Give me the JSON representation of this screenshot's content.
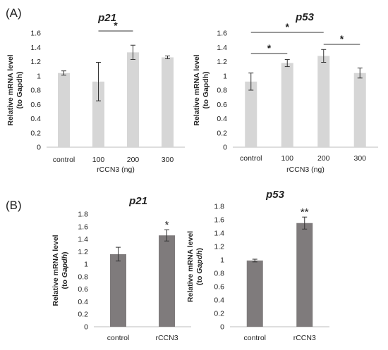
{
  "panels": [
    {
      "letter": "(A)"
    },
    {
      "letter": "(B)"
    }
  ],
  "chart_data": [
    {
      "type": "bar",
      "panel": "(A)",
      "title": "p21",
      "ylabel_line1": "Relative mRNA level",
      "ylabel_line2": "(to Gapdh)",
      "xlabel": "rCCN3 (ng)",
      "categories": [
        "control",
        "100",
        "200",
        "300"
      ],
      "values": [
        1.04,
        0.92,
        1.33,
        1.26
      ],
      "errors": [
        0.03,
        0.27,
        0.1,
        0.02
      ],
      "ylim": [
        0,
        1.6
      ],
      "yticks": [
        "0",
        "0.2",
        "0.4",
        "0.6",
        "0.8",
        "1",
        "1.2",
        "1.4",
        "1.6"
      ],
      "grid": false,
      "bar_color": "#d6d6d6",
      "significance": [
        {
          "from": 1,
          "to": 2,
          "label": "*"
        }
      ]
    },
    {
      "type": "bar",
      "panel": "(A)",
      "title": "p53",
      "ylabel_line1": "Relative mRNA level",
      "ylabel_line2": "(to Gapdh)",
      "xlabel": "rCCN3 (ng)",
      "categories": [
        "control",
        "100",
        "200",
        "300"
      ],
      "values": [
        0.92,
        1.18,
        1.28,
        1.04
      ],
      "errors": [
        0.12,
        0.05,
        0.09,
        0.07
      ],
      "ylim": [
        0,
        1.6
      ],
      "yticks": [
        "0",
        "0.2",
        "0.4",
        "0.6",
        "0.8",
        "1",
        "1.2",
        "1.4",
        "1.6"
      ],
      "grid": false,
      "bar_color": "#d6d6d6",
      "significance": [
        {
          "from": 0,
          "to": 2,
          "label": "*"
        },
        {
          "from": 0,
          "to": 1,
          "label": "*"
        },
        {
          "from": 2,
          "to": 3,
          "label": "*"
        }
      ]
    },
    {
      "type": "bar",
      "panel": "(B)",
      "title": "p21",
      "ylabel_line1": "Relative mRNA level",
      "ylabel_line2_prefix": "(to ",
      "ylabel_line2_italic": "Gapdh",
      "ylabel_line2_suffix": ")",
      "xlabel": "",
      "categories": [
        "control",
        "rCCN3"
      ],
      "values": [
        1.16,
        1.46
      ],
      "errors": [
        0.11,
        0.09
      ],
      "ylim": [
        0,
        1.8
      ],
      "yticks": [
        "0",
        "0.2",
        "0.4",
        "0.6",
        "0.8",
        "1",
        "1.2",
        "1.4",
        "1.6",
        "1.8"
      ],
      "grid": false,
      "bar_color": "#7f7b7c",
      "bar_labels": [
        "",
        "*"
      ]
    },
    {
      "type": "bar",
      "panel": "(B)",
      "title": "p53",
      "ylabel_line1": "Relative mRNA level",
      "ylabel_line2_prefix": "(to ",
      "ylabel_line2_italic": "Gapdh",
      "ylabel_line2_suffix": ")",
      "xlabel": "",
      "categories": [
        "control",
        "rCCN3"
      ],
      "values": [
        0.99,
        1.55
      ],
      "errors": [
        0.02,
        0.09
      ],
      "ylim": [
        0,
        1.8
      ],
      "yticks": [
        "0",
        "0.2",
        "0.4",
        "0.6",
        "0.8",
        "1",
        "1.2",
        "1.4",
        "1.6",
        "1.8"
      ],
      "grid": false,
      "bar_color": "#7f7b7c",
      "bar_labels": [
        "",
        "**"
      ]
    }
  ]
}
